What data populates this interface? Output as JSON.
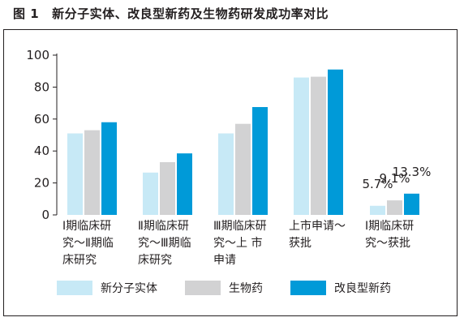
{
  "figure": {
    "label": "图 1",
    "title": "新分子实体、改良型新药及生物药研发成功率对比"
  },
  "chart_data": {
    "type": "bar",
    "categories": [
      [
        "Ⅰ期临床研",
        "究～Ⅱ期临",
        "床研究"
      ],
      [
        "Ⅱ期临床研",
        "究～Ⅲ期临",
        "床研究"
      ],
      [
        "Ⅲ期临床研",
        "究～上  市",
        "申请"
      ],
      [
        "上市申请～",
        "获批"
      ],
      [
        "Ⅰ期临床研",
        "究～获批"
      ]
    ],
    "series": [
      {
        "name": "新分子实体",
        "color": "#c7e9f6",
        "values": [
          51,
          26.5,
          51,
          86,
          5.7
        ]
      },
      {
        "name": "生物药",
        "color": "#d2d2d3",
        "values": [
          53,
          33,
          57,
          86.5,
          9.1
        ]
      },
      {
        "name": "改良型新药",
        "color": "#009ad8",
        "values": [
          58,
          38.5,
          67.5,
          91,
          13.3
        ]
      }
    ],
    "data_labels": [
      "5.7%",
      "9.1%",
      "13.3%"
    ],
    "y_ticks": [
      "0",
      "20",
      "40",
      "60",
      "80",
      "100"
    ],
    "ylim": [
      0,
      100
    ],
    "grid": false,
    "legend_position": "bottom"
  }
}
